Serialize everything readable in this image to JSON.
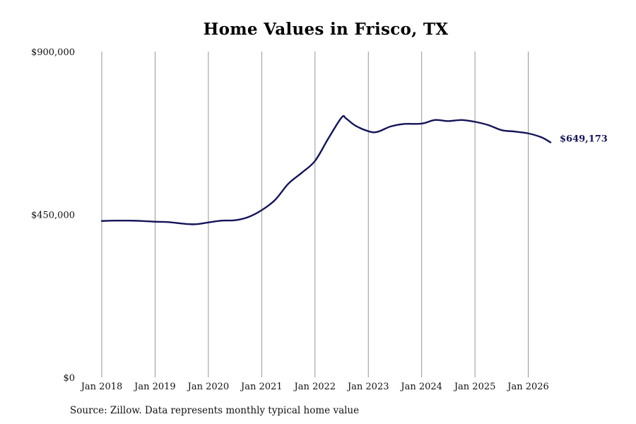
{
  "chart_data": {
    "type": "line",
    "title": "Home Values in Frisco, TX",
    "xlabel": "",
    "ylabel": "",
    "ylim": [
      0,
      900000
    ],
    "y_ticks": [
      0,
      450000,
      900000
    ],
    "y_tick_labels": [
      "$0",
      "$450,000",
      "$900,000"
    ],
    "x_ticks": [
      "2018-01",
      "2019-01",
      "2020-01",
      "2021-01",
      "2022-01",
      "2023-01",
      "2024-01",
      "2025-01",
      "2026-01"
    ],
    "x_tick_labels": [
      "Jan 2018",
      "Jan 2019",
      "Jan 2020",
      "Jan 2021",
      "Jan 2022",
      "Jan 2023",
      "Jan 2024",
      "Jan 2025",
      "Jan 2026"
    ],
    "xlim": [
      "2018-01",
      "2026-06"
    ],
    "grid": "vertical",
    "line_color": "#14145a",
    "grid_color": "#8c8c8c",
    "end_label": "$649,173",
    "series": [
      {
        "x": [
          "2018-01",
          "2018-04",
          "2018-07",
          "2018-10",
          "2019-01",
          "2019-04",
          "2019-07",
          "2019-10",
          "2020-01",
          "2020-04",
          "2020-07",
          "2020-10",
          "2021-01",
          "2021-04",
          "2021-07",
          "2021-10",
          "2022-01",
          "2022-04",
          "2022-07",
          "2022-08",
          "2022-10",
          "2023-01",
          "2023-03",
          "2023-06",
          "2023-09",
          "2024-01",
          "2024-04",
          "2024-07",
          "2024-10",
          "2025-01",
          "2025-04",
          "2025-07",
          "2025-10",
          "2026-01",
          "2026-04",
          "2026-06"
        ],
        "y": [
          432000,
          433000,
          433000,
          432000,
          430000,
          429000,
          425000,
          423000,
          428000,
          433000,
          434000,
          443000,
          462000,
          490000,
          535000,
          565000,
          598000,
          660000,
          718000,
          715000,
          696000,
          680000,
          678000,
          693000,
          700000,
          701000,
          711000,
          708000,
          711000,
          706000,
          697000,
          683000,
          679000,
          674000,
          663000,
          649173
        ]
      }
    ]
  },
  "footer": {
    "source": "Source: Zillow. Data represents monthly typical home value"
  }
}
